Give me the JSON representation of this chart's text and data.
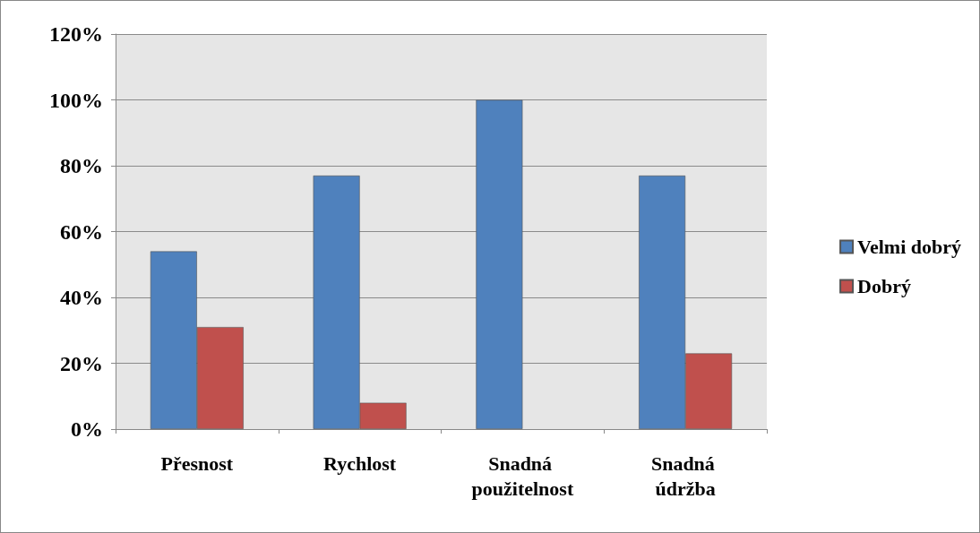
{
  "chart_data": {
    "type": "bar",
    "categories": [
      "Přesnost",
      "Rychlost",
      "Snadná použitelnost",
      "Snadná údržba"
    ],
    "series": [
      {
        "name": "Velmi dobrý",
        "color": "#4f81bd",
        "values": [
          54,
          77,
          100,
          77
        ]
      },
      {
        "name": "Dobrý",
        "color": "#c0504d",
        "values": [
          31,
          8,
          null,
          23
        ]
      }
    ],
    "ylim": [
      0,
      120
    ],
    "yticks": [
      {
        "value": 0,
        "label": "0%"
      },
      {
        "value": 20,
        "label": "20%"
      },
      {
        "value": 40,
        "label": "40%"
      },
      {
        "value": 60,
        "label": "60%"
      },
      {
        "value": 80,
        "label": "80%"
      },
      {
        "value": 100,
        "label": "100%"
      },
      {
        "value": 120,
        "label": "120%"
      }
    ],
    "grid": "y",
    "legend": "right"
  }
}
